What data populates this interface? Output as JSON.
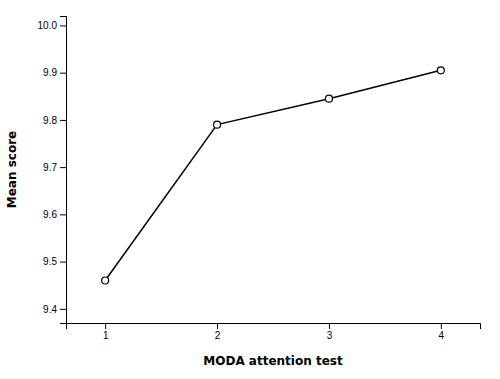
{
  "chart_data": {
    "type": "line",
    "xlabel": "MODA attention test",
    "ylabel": "Mean score",
    "x": [
      1,
      2,
      3,
      4
    ],
    "values": [
      9.46,
      9.79,
      9.845,
      9.905
    ],
    "color": "#000000",
    "marker": "circle",
    "xlim": [
      0.65,
      4.35
    ],
    "xticks": [
      1,
      2,
      3,
      4
    ],
    "ylim": [
      9.37,
      10.02
    ],
    "yticks": [
      9.4,
      9.5,
      9.6,
      9.7,
      9.8,
      9.9,
      {
        "value": 10.0,
        "label": "10.0"
      }
    ],
    "grid": false
  }
}
